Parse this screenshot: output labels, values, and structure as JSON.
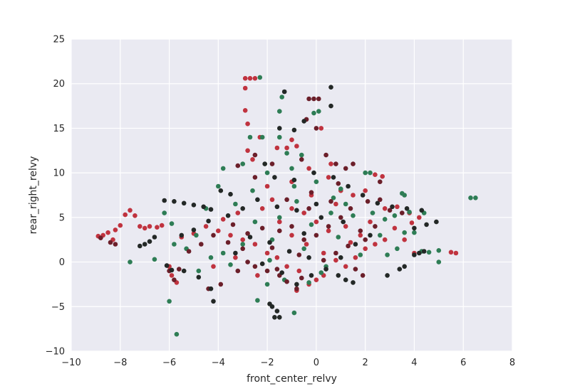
{
  "chart_data": {
    "type": "scatter",
    "title": "",
    "xlabel": "front_center_relvy",
    "ylabel": "rear_right_relvy",
    "xlim": [
      -10,
      8
    ],
    "ylim": [
      -10,
      25
    ],
    "xticks": [
      -10,
      -8,
      -6,
      -4,
      -2,
      0,
      2,
      4,
      6,
      8
    ],
    "yticks": [
      -10,
      -5,
      0,
      5,
      10,
      15,
      20,
      25
    ],
    "xtick_labels": [
      "−10",
      "−8",
      "−6",
      "−4",
      "−2",
      "0",
      "2",
      "4",
      "6",
      "8"
    ],
    "ytick_labels": [
      "−10",
      "−5",
      "0",
      "5",
      "10",
      "15",
      "20",
      "25"
    ],
    "grid": true,
    "legend": "none",
    "background_color": "#eaeaf2",
    "series": [
      {
        "color": "#c0333f",
        "points": [
          [
            -8.9,
            2.9
          ],
          [
            -8.7,
            3.0
          ],
          [
            -8.5,
            3.3
          ],
          [
            -8.3,
            2.5
          ],
          [
            -8.2,
            3.6
          ],
          [
            -8.0,
            4.1
          ],
          [
            -7.8,
            5.3
          ],
          [
            -7.6,
            5.8
          ],
          [
            -7.4,
            5.2
          ],
          [
            -7.2,
            4.0
          ],
          [
            -7.0,
            3.8
          ],
          [
            -6.8,
            4.0
          ],
          [
            -6.5,
            3.9
          ],
          [
            -6.3,
            4.1
          ],
          [
            -6.0,
            -0.5
          ],
          [
            -5.9,
            -1.5
          ],
          [
            -5.7,
            -2.3
          ],
          [
            -2.9,
            20.6
          ],
          [
            -2.7,
            20.6
          ],
          [
            -2.5,
            20.6
          ],
          [
            -2.9,
            19.5
          ],
          [
            -2.9,
            17.0
          ],
          [
            -2.8,
            15.5
          ],
          [
            -2.8,
            12.5
          ],
          [
            -2.6,
            11.5
          ],
          [
            -2.3,
            14.0
          ],
          [
            -1.6,
            12.8
          ],
          [
            -1.2,
            12.8
          ],
          [
            -1.0,
            13.7
          ],
          [
            -0.8,
            13.0
          ],
          [
            0.2,
            15.0
          ],
          [
            0.6,
            11.0
          ],
          [
            -0.3,
            10.5
          ],
          [
            -2.0,
            8.5
          ],
          [
            -1.8,
            7.0
          ],
          [
            -1.0,
            9.0
          ],
          [
            0.5,
            9.5
          ],
          [
            1.0,
            8.0
          ],
          [
            1.5,
            7.5
          ],
          [
            2.0,
            8.0
          ],
          [
            2.4,
            9.8
          ],
          [
            2.7,
            9.6
          ],
          [
            2.8,
            6.0
          ],
          [
            3.3,
            6.2
          ],
          [
            3.8,
            5.5
          ],
          [
            4.2,
            5.0
          ],
          [
            3.2,
            3.8
          ],
          [
            2.8,
            2.5
          ],
          [
            2.4,
            2.0
          ],
          [
            2.0,
            1.5
          ],
          [
            1.6,
            0.5
          ],
          [
            1.2,
            -0.5
          ],
          [
            0.8,
            0.2
          ],
          [
            0.3,
            -1.5
          ],
          [
            0.0,
            -2.0
          ],
          [
            -0.3,
            -2.5
          ],
          [
            -0.7,
            -1.0
          ],
          [
            -1.2,
            -0.5
          ],
          [
            -1.6,
            0.5
          ],
          [
            -2.0,
            1.0
          ],
          [
            -2.5,
            2.0
          ],
          [
            -3.0,
            2.5
          ],
          [
            -3.5,
            3.0
          ],
          [
            -4.0,
            3.5
          ],
          [
            -4.5,
            4.0
          ],
          [
            -5.0,
            3.2
          ],
          [
            -5.5,
            2.8
          ],
          [
            -0.5,
            5.5
          ],
          [
            0.0,
            4.5
          ],
          [
            0.5,
            3.5
          ],
          [
            -1.0,
            6.0
          ],
          [
            -1.5,
            4.5
          ],
          [
            1.2,
            4.0
          ],
          [
            1.8,
            3.0
          ],
          [
            2.2,
            4.5
          ],
          [
            0.8,
            6.5
          ],
          [
            -0.2,
            7.5
          ],
          [
            -2.2,
            6.0
          ],
          [
            -3.2,
            5.5
          ],
          [
            -3.8,
            4.8
          ],
          [
            5.7,
            1.0
          ],
          [
            5.5,
            1.1
          ],
          [
            -0.8,
            -3.2
          ],
          [
            -1.0,
            3.0
          ],
          [
            -0.4,
            2.0
          ],
          [
            0.3,
            1.0
          ],
          [
            1.4,
            2.2
          ],
          [
            -2.4,
            -1.5
          ],
          [
            -3.3,
            0.5
          ],
          [
            -4.2,
            -0.5
          ],
          [
            3.6,
            2.5
          ],
          [
            4.0,
            1.0
          ],
          [
            3.9,
            4.4
          ]
        ]
      },
      {
        "color": "#2e7d55",
        "points": [
          [
            -2.3,
            20.7
          ],
          [
            -1.4,
            18.5
          ],
          [
            -0.1,
            16.7
          ],
          [
            0.1,
            16.9
          ],
          [
            -1.5,
            16.9
          ],
          [
            -2.7,
            14.0
          ],
          [
            -2.2,
            14.0
          ],
          [
            -1.5,
            14.0
          ],
          [
            -7.6,
            0.0
          ],
          [
            -6.6,
            0.3
          ],
          [
            -6.2,
            5.5
          ],
          [
            -5.9,
            4.3
          ],
          [
            -6.0,
            -4.4
          ],
          [
            -5.7,
            -8.1
          ],
          [
            -2.4,
            -4.3
          ],
          [
            -0.9,
            -5.7
          ],
          [
            6.3,
            7.2
          ],
          [
            6.5,
            7.2
          ],
          [
            5.0,
            1.3
          ],
          [
            5.0,
            0.0
          ],
          [
            4.6,
            1.1
          ],
          [
            4.3,
            1.2
          ],
          [
            4.0,
            3.3
          ],
          [
            3.6,
            3.3
          ],
          [
            3.3,
            1.5
          ],
          [
            3.5,
            7.7
          ],
          [
            3.6,
            7.5
          ],
          [
            2.9,
            0.8
          ],
          [
            2.0,
            10.0
          ],
          [
            2.2,
            10.0
          ],
          [
            1.2,
            6.5
          ],
          [
            0.6,
            5.5
          ],
          [
            -0.2,
            4.2
          ],
          [
            -0.8,
            6.8
          ],
          [
            -1.5,
            5.0
          ],
          [
            -2.5,
            4.5
          ],
          [
            -3.0,
            2.0
          ],
          [
            -3.8,
            1.0
          ],
          [
            -4.3,
            0.5
          ],
          [
            -4.8,
            -1.0
          ],
          [
            -5.3,
            1.5
          ],
          [
            -5.8,
            2.0
          ],
          [
            -4.5,
            6.0
          ],
          [
            -4.0,
            8.5
          ],
          [
            -3.8,
            10.5
          ],
          [
            -3.0,
            11.0
          ],
          [
            -2.0,
            10.0
          ],
          [
            -1.0,
            10.5
          ],
          [
            0.0,
            9.0
          ],
          [
            1.0,
            8.2
          ],
          [
            1.5,
            5.2
          ],
          [
            2.3,
            5.5
          ],
          [
            2.8,
            4.8
          ],
          [
            3.2,
            5.2
          ],
          [
            3.8,
            5.6
          ],
          [
            4.4,
            5.5
          ],
          [
            -0.5,
            1.5
          ],
          [
            0.4,
            -0.5
          ],
          [
            -1.3,
            -2.0
          ],
          [
            -2.0,
            -2.5
          ],
          [
            -1.8,
            2.5
          ],
          [
            0.9,
            2.8
          ],
          [
            1.8,
            0.8
          ],
          [
            -3.3,
            6.5
          ],
          [
            -2.6,
            8.0
          ],
          [
            -0.6,
            12.0
          ],
          [
            -1.2,
            12.2
          ],
          [
            -0.3,
            -2.3
          ],
          [
            0.2,
            -1.2
          ],
          [
            -3.5,
            -0.3
          ],
          [
            -4.9,
            3.0
          ],
          [
            2.6,
            3.0
          ],
          [
            -1.9,
            0.2
          ],
          [
            0.7,
            7.2
          ],
          [
            -0.9,
            8.5
          ]
        ]
      },
      {
        "color": "#6b1f2a",
        "points": [
          [
            -8.8,
            2.7
          ],
          [
            -8.4,
            2.2
          ],
          [
            -8.2,
            2.0
          ],
          [
            -0.4,
            16.0
          ],
          [
            0.0,
            15.0
          ],
          [
            -0.3,
            18.3
          ],
          [
            -0.1,
            18.3
          ],
          [
            0.1,
            18.3
          ],
          [
            -2.5,
            12.0
          ],
          [
            -1.8,
            11.0
          ],
          [
            -0.6,
            11.5
          ],
          [
            0.4,
            12.0
          ],
          [
            0.8,
            11.0
          ],
          [
            1.2,
            10.5
          ],
          [
            1.5,
            11.0
          ],
          [
            2.6,
            9.0
          ],
          [
            -4.2,
            3.0
          ],
          [
            -3.6,
            2.2
          ],
          [
            -3.0,
            1.5
          ],
          [
            -2.5,
            -0.5
          ],
          [
            -2.0,
            -1.0
          ],
          [
            -1.5,
            -1.5
          ],
          [
            -1.2,
            -2.2
          ],
          [
            -0.8,
            -3.0
          ],
          [
            -0.5,
            2.5
          ],
          [
            0.0,
            3.0
          ],
          [
            0.5,
            4.0
          ],
          [
            1.0,
            5.0
          ],
          [
            -1.0,
            4.0
          ],
          [
            -1.5,
            3.5
          ],
          [
            -2.2,
            3.8
          ],
          [
            -0.3,
            6.0
          ],
          [
            0.6,
            6.8
          ],
          [
            1.4,
            6.0
          ],
          [
            2.1,
            6.8
          ],
          [
            2.6,
            7.0
          ],
          [
            3.0,
            5.8
          ],
          [
            3.5,
            5.5
          ],
          [
            2.4,
            4.0
          ],
          [
            1.8,
            3.5
          ],
          [
            1.3,
            1.8
          ],
          [
            0.8,
            1.0
          ],
          [
            0.3,
            0.2
          ],
          [
            -0.7,
            0.8
          ],
          [
            -1.8,
            1.6
          ],
          [
            -2.8,
            3.2
          ],
          [
            -3.4,
            4.2
          ],
          [
            -4.7,
            2.0
          ],
          [
            -5.2,
            1.2
          ],
          [
            -5.6,
            -0.8
          ],
          [
            -6.0,
            -1.0
          ],
          [
            -5.8,
            -2.0
          ],
          [
            -4.4,
            -3.0
          ],
          [
            -3.9,
            -2.5
          ],
          [
            -3.2,
            -1.0
          ],
          [
            -2.8,
            0.0
          ],
          [
            1.6,
            -0.8
          ],
          [
            1.9,
            -1.5
          ],
          [
            -0.2,
            7.8
          ],
          [
            -1.2,
            7.0
          ],
          [
            -2.5,
            9.5
          ],
          [
            -3.2,
            10.8
          ],
          [
            0.9,
            8.8
          ],
          [
            -1.6,
            -0.8
          ],
          [
            -0.6,
            -1.8
          ],
          [
            2.0,
            2.5
          ]
        ]
      },
      {
        "color": "#232826",
        "points": [
          [
            -1.3,
            19.1
          ],
          [
            0.6,
            19.6
          ],
          [
            0.6,
            17.5
          ],
          [
            -1.5,
            15.0
          ],
          [
            -0.9,
            14.8
          ],
          [
            -0.5,
            15.8
          ],
          [
            -7.2,
            1.8
          ],
          [
            -7.0,
            2.0
          ],
          [
            -6.8,
            2.3
          ],
          [
            -6.6,
            2.8
          ],
          [
            -6.2,
            6.9
          ],
          [
            -5.8,
            6.8
          ],
          [
            -5.4,
            6.6
          ],
          [
            -5.0,
            6.4
          ],
          [
            -4.6,
            6.2
          ],
          [
            -4.3,
            5.9
          ],
          [
            -3.9,
            8.0
          ],
          [
            -3.5,
            7.6
          ],
          [
            -4.2,
            -4.4
          ],
          [
            -4.3,
            -3.0
          ],
          [
            -4.8,
            -1.7
          ],
          [
            -5.4,
            -1.0
          ],
          [
            -5.9,
            -0.9
          ],
          [
            -6.1,
            -0.4
          ],
          [
            -1.9,
            -4.7
          ],
          [
            -1.8,
            -5.0
          ],
          [
            -1.6,
            -5.5
          ],
          [
            -1.5,
            -6.2
          ],
          [
            -1.7,
            -6.2
          ],
          [
            4.9,
            4.5
          ],
          [
            4.5,
            4.2
          ],
          [
            4.0,
            3.8
          ],
          [
            4.0,
            0.8
          ],
          [
            4.2,
            1.0
          ],
          [
            4.4,
            1.2
          ],
          [
            3.6,
            -0.5
          ],
          [
            3.4,
            -0.8
          ],
          [
            2.9,
            -1.5
          ],
          [
            1.5,
            -2.3
          ],
          [
            1.2,
            -2.0
          ],
          [
            0.9,
            -1.5
          ],
          [
            -0.5,
            3.2
          ],
          [
            0.2,
            5.0
          ],
          [
            -0.8,
            5.8
          ],
          [
            -1.6,
            6.2
          ],
          [
            -2.4,
            7.0
          ],
          [
            -3.0,
            6.0
          ],
          [
            -3.6,
            5.2
          ],
          [
            -4.4,
            4.6
          ],
          [
            -5.0,
            3.6
          ],
          [
            -5.5,
            3.0
          ],
          [
            -0.9,
            9.2
          ],
          [
            -0.1,
            10.0
          ],
          [
            0.7,
            9.5
          ],
          [
            1.3,
            8.5
          ],
          [
            1.9,
            7.5
          ],
          [
            2.5,
            6.6
          ],
          [
            3.1,
            6.2
          ],
          [
            3.7,
            6.0
          ],
          [
            4.3,
            5.8
          ],
          [
            2.2,
            3.0
          ],
          [
            1.6,
            2.0
          ],
          [
            1.0,
            0.5
          ],
          [
            0.4,
            -0.8
          ],
          [
            -0.3,
            0.5
          ],
          [
            -1.1,
            1.2
          ],
          [
            -1.9,
            2.2
          ],
          [
            -2.7,
            2.8
          ],
          [
            -3.3,
            1.0
          ],
          [
            -2.2,
            -0.2
          ],
          [
            -1.4,
            -1.2
          ],
          [
            -0.8,
            -2.5
          ],
          [
            -0.2,
            -1.5
          ],
          [
            0.0,
            6.5
          ],
          [
            1.1,
            4.5
          ],
          [
            -1.7,
            9.5
          ],
          [
            -2.1,
            11.0
          ]
        ]
      }
    ]
  }
}
